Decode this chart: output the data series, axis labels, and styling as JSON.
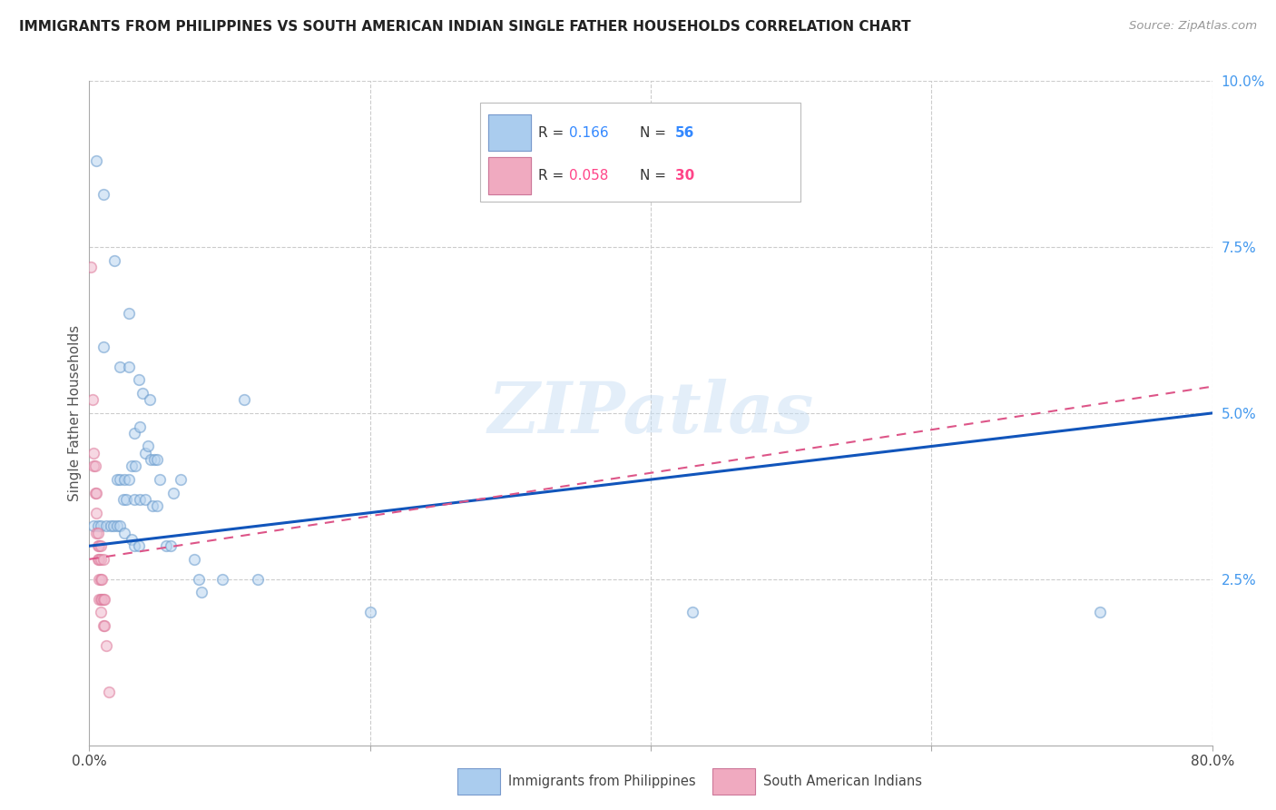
{
  "title": "IMMIGRANTS FROM PHILIPPINES VS SOUTH AMERICAN INDIAN SINGLE FATHER HOUSEHOLDS CORRELATION CHART",
  "source": "Source: ZipAtlas.com",
  "ylabel": "Single Father Households",
  "xlim": [
    0,
    0.8
  ],
  "ylim": [
    0,
    0.1
  ],
  "xticks": [
    0.0,
    0.2,
    0.4,
    0.6,
    0.8
  ],
  "yticks": [
    0.025,
    0.05,
    0.075,
    0.1
  ],
  "xticklabels": [
    "0.0%",
    "",
    "",
    "",
    "80.0%"
  ],
  "yticklabels_right": [
    "2.5%",
    "5.0%",
    "7.5%",
    "10.0%"
  ],
  "watermark": "ZIPatlas",
  "blue_scatter": [
    [
      0.005,
      0.088
    ],
    [
      0.01,
      0.083
    ],
    [
      0.018,
      0.073
    ],
    [
      0.028,
      0.065
    ],
    [
      0.01,
      0.06
    ],
    [
      0.022,
      0.057
    ],
    [
      0.028,
      0.057
    ],
    [
      0.035,
      0.055
    ],
    [
      0.038,
      0.053
    ],
    [
      0.043,
      0.052
    ],
    [
      0.11,
      0.052
    ],
    [
      0.032,
      0.047
    ],
    [
      0.036,
      0.048
    ],
    [
      0.04,
      0.044
    ],
    [
      0.042,
      0.045
    ],
    [
      0.044,
      0.043
    ],
    [
      0.046,
      0.043
    ],
    [
      0.048,
      0.043
    ],
    [
      0.02,
      0.04
    ],
    [
      0.022,
      0.04
    ],
    [
      0.025,
      0.04
    ],
    [
      0.028,
      0.04
    ],
    [
      0.03,
      0.042
    ],
    [
      0.033,
      0.042
    ],
    [
      0.05,
      0.04
    ],
    [
      0.06,
      0.038
    ],
    [
      0.065,
      0.04
    ],
    [
      0.024,
      0.037
    ],
    [
      0.026,
      0.037
    ],
    [
      0.032,
      0.037
    ],
    [
      0.036,
      0.037
    ],
    [
      0.04,
      0.037
    ],
    [
      0.045,
      0.036
    ],
    [
      0.048,
      0.036
    ],
    [
      0.003,
      0.033
    ],
    [
      0.006,
      0.033
    ],
    [
      0.008,
      0.033
    ],
    [
      0.012,
      0.033
    ],
    [
      0.015,
      0.033
    ],
    [
      0.017,
      0.033
    ],
    [
      0.02,
      0.033
    ],
    [
      0.022,
      0.033
    ],
    [
      0.025,
      0.032
    ],
    [
      0.03,
      0.031
    ],
    [
      0.032,
      0.03
    ],
    [
      0.035,
      0.03
    ],
    [
      0.055,
      0.03
    ],
    [
      0.058,
      0.03
    ],
    [
      0.075,
      0.028
    ],
    [
      0.078,
      0.025
    ],
    [
      0.08,
      0.023
    ],
    [
      0.095,
      0.025
    ],
    [
      0.12,
      0.025
    ],
    [
      0.2,
      0.02
    ],
    [
      0.43,
      0.02
    ],
    [
      0.72,
      0.02
    ]
  ],
  "pink_scatter": [
    [
      0.001,
      0.072
    ],
    [
      0.002,
      0.052
    ],
    [
      0.003,
      0.044
    ],
    [
      0.003,
      0.042
    ],
    [
      0.004,
      0.042
    ],
    [
      0.004,
      0.038
    ],
    [
      0.005,
      0.038
    ],
    [
      0.005,
      0.035
    ],
    [
      0.005,
      0.032
    ],
    [
      0.006,
      0.032
    ],
    [
      0.006,
      0.03
    ],
    [
      0.006,
      0.028
    ],
    [
      0.007,
      0.03
    ],
    [
      0.007,
      0.028
    ],
    [
      0.007,
      0.025
    ],
    [
      0.007,
      0.022
    ],
    [
      0.008,
      0.03
    ],
    [
      0.008,
      0.028
    ],
    [
      0.008,
      0.025
    ],
    [
      0.008,
      0.022
    ],
    [
      0.008,
      0.02
    ],
    [
      0.009,
      0.025
    ],
    [
      0.009,
      0.022
    ],
    [
      0.01,
      0.028
    ],
    [
      0.01,
      0.022
    ],
    [
      0.01,
      0.018
    ],
    [
      0.011,
      0.022
    ],
    [
      0.011,
      0.018
    ],
    [
      0.012,
      0.015
    ],
    [
      0.014,
      0.008
    ]
  ],
  "blue_line": {
    "x0": 0.0,
    "y0": 0.03,
    "x1": 0.8,
    "y1": 0.05
  },
  "pink_line": {
    "x0": 0.0,
    "y0": 0.028,
    "x1": 0.8,
    "y1": 0.054
  },
  "scatter_size": 70,
  "scatter_alpha": 0.55,
  "scatter_linewidth": 1.2,
  "blue_fill": "#b8d4f0",
  "blue_edge": "#6699cc",
  "pink_fill": "#f0b8cc",
  "pink_edge": "#dd7799",
  "blue_line_color": "#1155bb",
  "pink_line_color": "#dd5588",
  "background_color": "#ffffff",
  "grid_color": "#cccccc",
  "grid_linestyle": "--",
  "right_tick_color": "#4499ee",
  "legend_blue_fill": "#aaccee",
  "legend_blue_edge": "#7799cc",
  "legend_pink_fill": "#f0aac0",
  "legend_pink_edge": "#cc7799",
  "legend_R_color": "#3388ff",
  "legend_N_color": "#3388ff",
  "legend_R2_color": "#ff4488",
  "legend_N2_color": "#ff4488",
  "bottom_label1": "Immigrants from Philippines",
  "bottom_label2": "South American Indians"
}
